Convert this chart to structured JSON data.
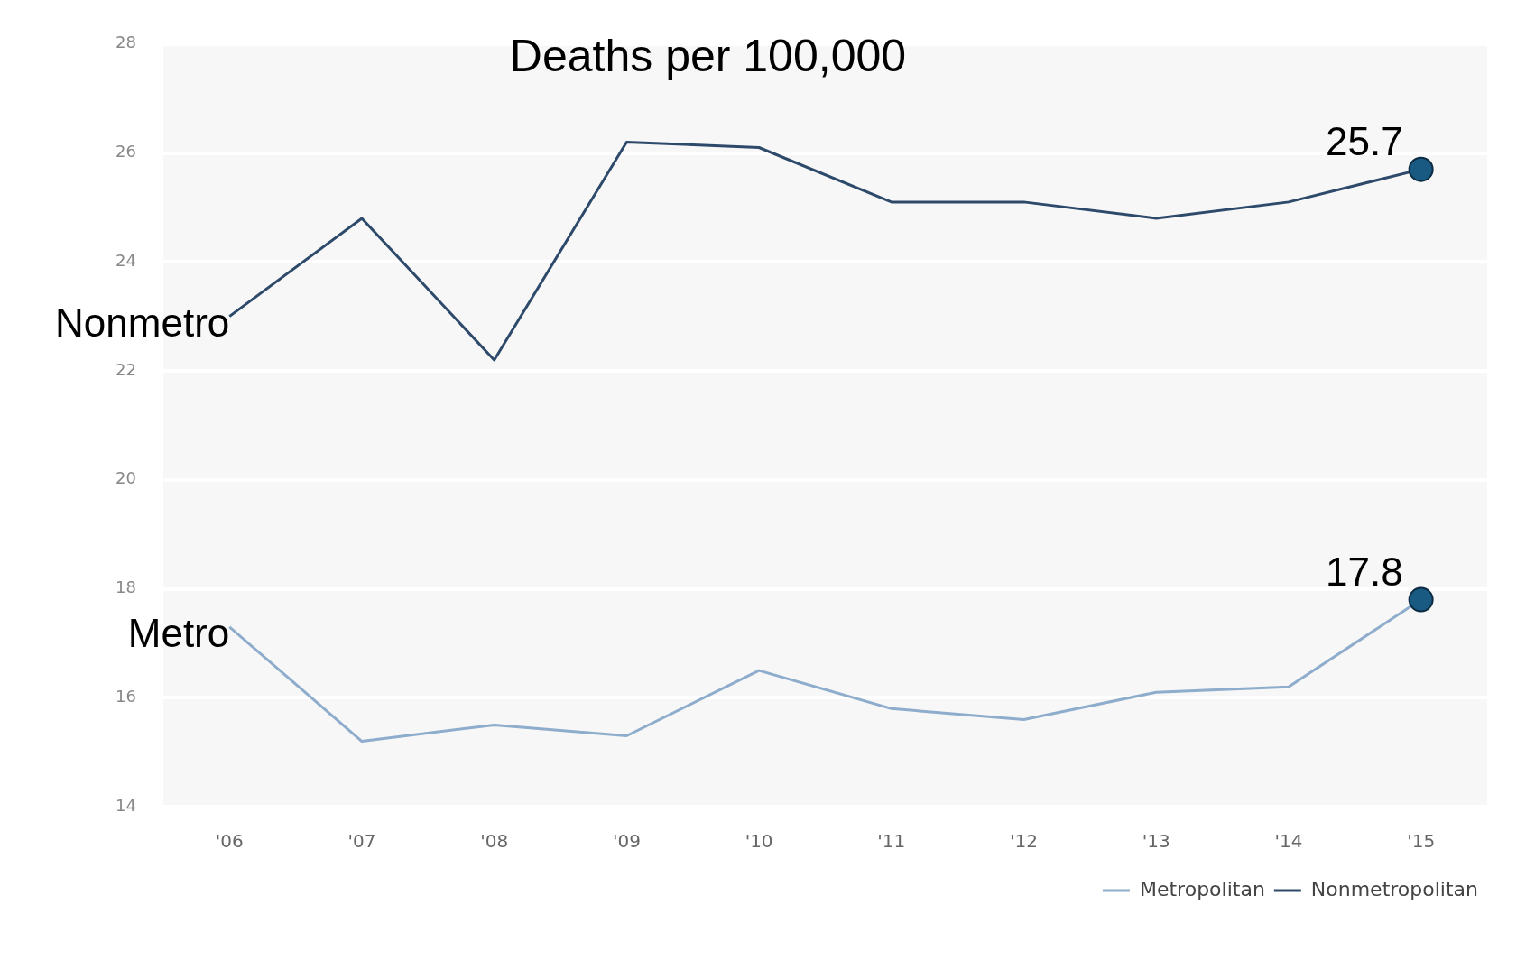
{
  "chart_data": {
    "type": "line",
    "title": "Deaths per 100,000",
    "categories": [
      "'06",
      "'07",
      "'08",
      "'09",
      "'10",
      "'11",
      "'12",
      "'13",
      "'14",
      "'15"
    ],
    "series": [
      {
        "name": "Metropolitan",
        "color": "#8eaccb",
        "values": [
          17.3,
          15.2,
          15.5,
          15.3,
          16.5,
          15.8,
          15.6,
          16.1,
          16.2,
          17.8
        ],
        "value_labels": [
          null,
          null,
          null,
          null,
          null,
          null,
          null,
          null,
          null,
          "17.8"
        ]
      },
      {
        "name": "Nonmetropolitan",
        "color": "#2e4a6b",
        "values": [
          23.0,
          24.8,
          22.2,
          26.2,
          26.1,
          25.1,
          25.1,
          24.8,
          25.1,
          25.7
        ],
        "value_labels": [
          null,
          null,
          null,
          null,
          null,
          null,
          null,
          null,
          null,
          "25.7"
        ]
      }
    ],
    "ylim": [
      14,
      28
    ],
    "yticks": [
      14,
      16,
      18,
      20,
      22,
      24,
      26,
      28
    ],
    "grid": "y",
    "legend": "bottom right",
    "marker": "none",
    "annotations": [
      {
        "text": "Nonmetro",
        "x": "'06",
        "y": 23.0
      },
      {
        "text": "Metro",
        "x": "'06",
        "y": 17.3
      }
    ]
  }
}
